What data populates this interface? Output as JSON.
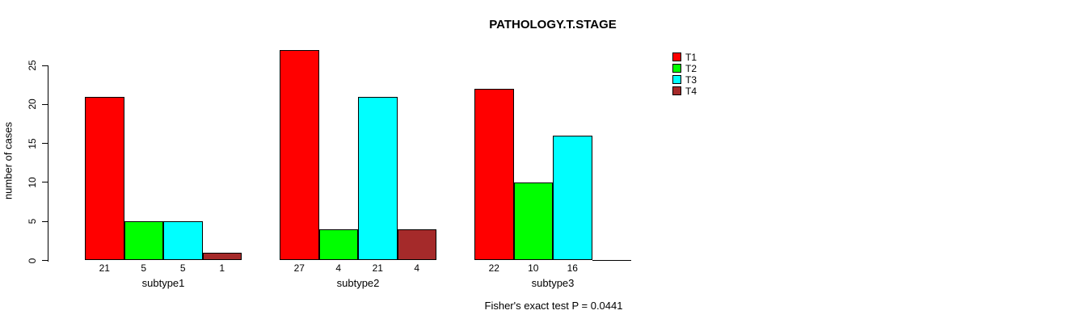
{
  "chart_data": {
    "type": "bar",
    "title": "PATHOLOGY.T.STAGE",
    "ylabel": "number of cases",
    "xlabel": "",
    "categories": [
      "subtype1",
      "subtype2",
      "subtype3"
    ],
    "series": [
      {
        "name": "T1",
        "color": "#FF0000",
        "values": [
          21,
          27,
          22
        ]
      },
      {
        "name": "T2",
        "color": "#00FF00",
        "values": [
          5,
          4,
          10
        ]
      },
      {
        "name": "T3",
        "color": "#00FFFF",
        "values": [
          5,
          21,
          16
        ]
      },
      {
        "name": "T4",
        "color": "#A52A2A",
        "values": [
          1,
          4,
          0
        ]
      }
    ],
    "bar_labels": [
      [
        "21",
        "5",
        "5",
        "1"
      ],
      [
        "27",
        "4",
        "21",
        "4"
      ],
      [
        "22",
        "10",
        "16",
        ""
      ]
    ],
    "yticks": [
      0,
      5,
      10,
      15,
      20,
      25
    ],
    "ylim": [
      0,
      25
    ],
    "grid": false,
    "legend_position": "right-inside",
    "annotation": "Fisher's exact test P = 0.0441"
  }
}
